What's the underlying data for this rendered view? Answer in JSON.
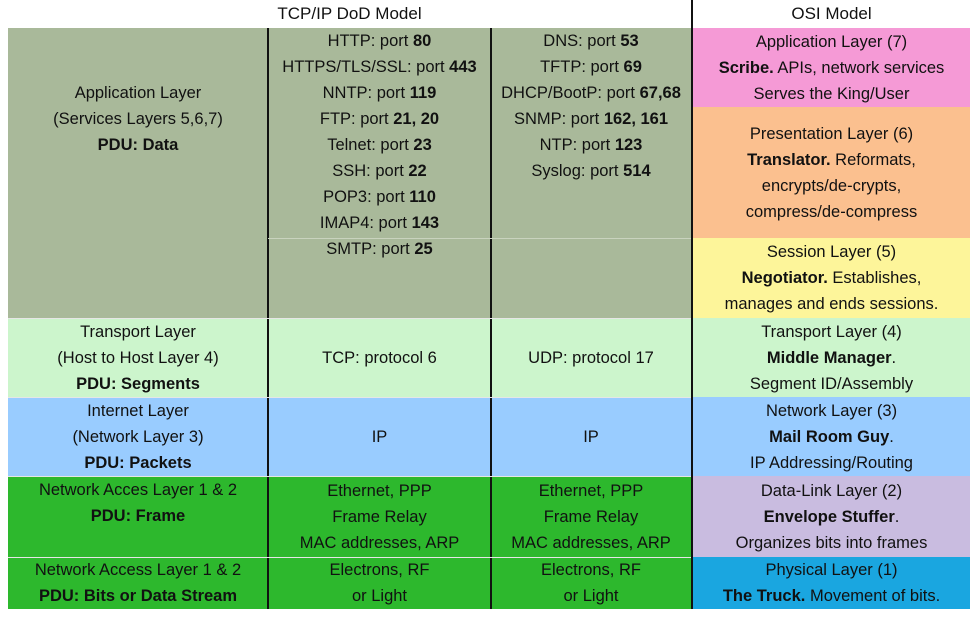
{
  "headers": {
    "tcpip": "TCP/IP DoD Model",
    "osi": "OSI Model"
  },
  "colors": {
    "application": "#a9b99a",
    "transport": "#ccf5cc",
    "internet": "#99ccff",
    "network_access": "#2db82d",
    "osi_application": "#f59ad6",
    "osi_presentation": "#fbc08f",
    "osi_session": "#fdf59a",
    "osi_transport": "#ccf5cc",
    "osi_network": "#99ccff",
    "osi_datalink": "#c9bce0",
    "osi_physical": "#1aa6e0"
  },
  "application": {
    "name": "Application Layer",
    "sub": "(Services Layers 5,6,7)",
    "pdu": "PDU: Data",
    "tcp_ports": [
      {
        "t": "HTTP: port ",
        "b": "80"
      },
      {
        "t": "HTTPS/TLS/SSL: port ",
        "b": "443"
      },
      {
        "t": "NNTP: port ",
        "b": "119"
      },
      {
        "t": "FTP: port ",
        "b": "21, 20"
      },
      {
        "t": "Telnet: port ",
        "b": "23"
      },
      {
        "t": "SSH: port ",
        "b": "22"
      },
      {
        "t": "POP3: port ",
        "b": "110"
      },
      {
        "t": "IMAP4: port ",
        "b": "143"
      },
      {
        "t": "SMTP: port ",
        "b": "25"
      }
    ],
    "udp_ports": [
      {
        "t": "DNS: port ",
        "b": "53"
      },
      {
        "t": "TFTP: port ",
        "b": "69"
      },
      {
        "t": "DHCP/BootP: port ",
        "b": "67,68"
      },
      {
        "t": "SNMP: port ",
        "b": "162, 161"
      },
      {
        "t": "NTP: port ",
        "b": "123"
      },
      {
        "t": "Syslog: port ",
        "b": "514"
      }
    ]
  },
  "transport": {
    "name": "Transport Layer",
    "sub": "(Host to Host Layer 4)",
    "pdu": "PDU: Segments",
    "tcp": "TCP: protocol 6",
    "udp": "UDP: protocol 17"
  },
  "internet": {
    "name": "Internet Layer",
    "sub": "(Network Layer 3)",
    "pdu": "PDU: Packets",
    "tcp": "IP",
    "udp": "IP"
  },
  "access12": {
    "name": "Network Acces Layer 1 & 2",
    "pdu": "PDU: Frame",
    "lines": [
      "Ethernet, PPP",
      "Frame Relay",
      "MAC addresses, ARP"
    ]
  },
  "access1": {
    "name": "Network Access Layer 1 & 2",
    "pdu": "PDU: Bits or Data Stream",
    "lines": [
      "Electrons, RF",
      "or Light"
    ]
  },
  "osi": {
    "application": {
      "title": "Application Layer (7)",
      "bold": "Scribe.",
      "rest": "  APIs, network services",
      "line3": "Serves the King/User"
    },
    "presentation": {
      "title": "Presentation Layer (6)",
      "bold": "Translator.",
      "rest": "  Reformats,",
      "line3": "encrypts/de-crypts,",
      "line4": "compress/de-compress"
    },
    "session": {
      "title": "Session Layer (5)",
      "bold": "Negotiator.",
      "rest": "  Establishes,",
      "line3": "manages and ends sessions."
    },
    "transport": {
      "title": "Transport Layer (4)",
      "bold": "Middle Manager",
      "rest": ".",
      "line3": "Segment ID/Assembly"
    },
    "network": {
      "title": "Network Layer (3)",
      "bold": "Mail Room Guy",
      "rest": ".",
      "line3": "IP Addressing/Routing"
    },
    "datalink": {
      "title": "Data-Link Layer (2)",
      "bold": "Envelope Stuffer",
      "rest": ".",
      "line3": "Organizes bits into frames"
    },
    "physical": {
      "title": "Physical Layer (1)",
      "bold": "The Truck.",
      "rest": "   Movement of bits."
    }
  }
}
